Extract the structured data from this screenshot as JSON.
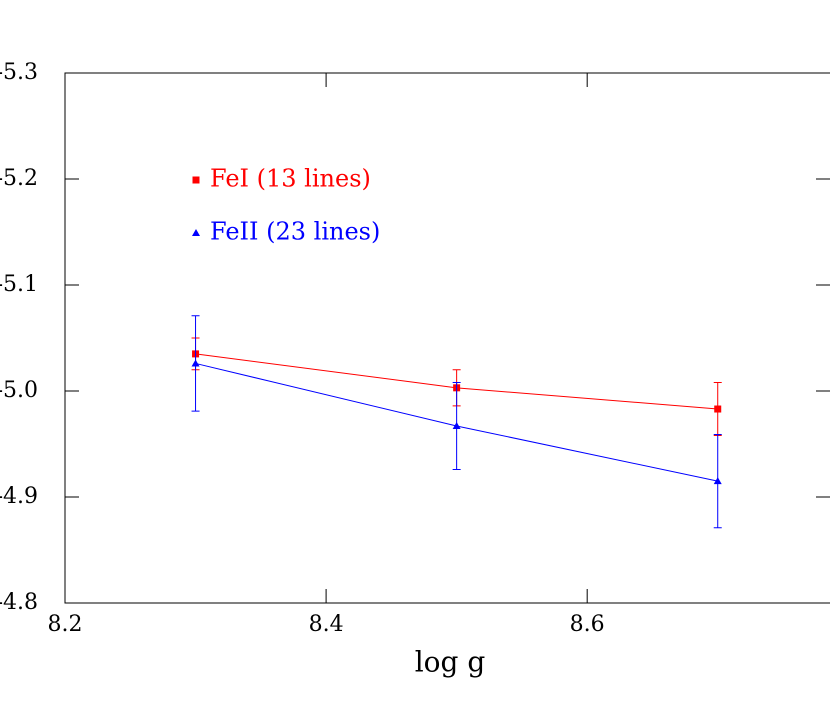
{
  "chart_data": {
    "type": "line",
    "x_label": "log g",
    "x": [
      8.3,
      8.5,
      8.7
    ],
    "series": [
      {
        "name": "FeI (13 lines)",
        "color": "#ff0000",
        "marker": "square",
        "values": [
          -5.035,
          -5.003,
          -4.983
        ],
        "errors": [
          0.015,
          0.017,
          0.025
        ]
      },
      {
        "name": "FeII (23 lines)",
        "color": "#0000ff",
        "marker": "triangle",
        "values": [
          -5.026,
          -4.967,
          -4.915
        ],
        "errors": [
          0.045,
          0.041,
          0.044
        ]
      }
    ],
    "xlim": [
      8.2,
      8.786
    ],
    "xticks": [
      8.2,
      8.4,
      8.6
    ],
    "ylim": [
      -4.8,
      -5.3
    ],
    "yticks": [
      -5.3,
      -5.2,
      -5.1,
      {
        "value": -5.0,
        "label": "-5.0"
      },
      -4.9,
      -4.8
    ]
  }
}
